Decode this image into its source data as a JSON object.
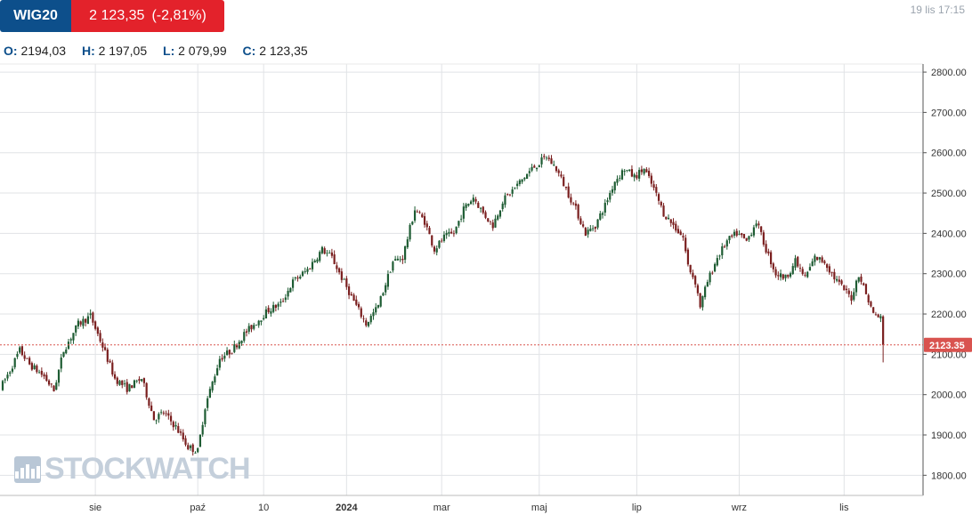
{
  "header": {
    "symbol": "WIG20",
    "price": "2 123,35",
    "change": "(-2,81%)",
    "timestamp": "19 lis 17:15"
  },
  "ohlc": [
    {
      "label": "O:",
      "value": "2194,03"
    },
    {
      "label": "H:",
      "value": "2 197,05"
    },
    {
      "label": "L:",
      "value": "2 079,99"
    },
    {
      "label": "C:",
      "value": "2 123,35"
    }
  ],
  "watermark": "STOCKWATCH",
  "colors": {
    "brand": "#0d4f8b",
    "down": "#e3222b",
    "candle_up": "#1e5c33",
    "candle_down": "#7a1f1f",
    "grid": "#e1e3e6",
    "price_line": "#d9534f"
  },
  "chart_data": {
    "type": "candlestick",
    "ylim": [
      1750,
      2820
    ],
    "y_ticks": [
      1800,
      1900,
      2000,
      2100,
      2200,
      2300,
      2400,
      2500,
      2600,
      2700,
      2800
    ],
    "y_tick_labels": [
      "1800.00",
      "1900.00",
      "2000.00",
      "2100.00",
      "2200.00",
      "2300.00",
      "2400.00",
      "2500.00",
      "2600.00",
      "2700.00",
      "2800.00"
    ],
    "x_ticks": [
      "sie",
      "paź",
      "10",
      "2024",
      "mar",
      "maj",
      "lip",
      "wrz",
      "lis"
    ],
    "x_tick_bold": [
      false,
      false,
      false,
      true,
      false,
      false,
      false,
      false,
      false
    ],
    "x_tick_index": [
      38,
      80,
      107,
      141,
      180,
      220,
      260,
      302,
      345
    ],
    "last_price_label": "2123.35",
    "last_price": 2123.35,
    "grid": true,
    "trend_anchors": [
      [
        0,
        2015
      ],
      [
        4,
        2060
      ],
      [
        8,
        2110
      ],
      [
        12,
        2075
      ],
      [
        18,
        2045
      ],
      [
        22,
        2010
      ],
      [
        26,
        2110
      ],
      [
        32,
        2175
      ],
      [
        37,
        2195
      ],
      [
        42,
        2120
      ],
      [
        47,
        2040
      ],
      [
        52,
        2015
      ],
      [
        58,
        2040
      ],
      [
        63,
        1940
      ],
      [
        67,
        1955
      ],
      [
        72,
        1920
      ],
      [
        77,
        1870
      ],
      [
        81,
        1860
      ],
      [
        84,
        1970
      ],
      [
        86,
        2010
      ],
      [
        90,
        2090
      ],
      [
        95,
        2110
      ],
      [
        100,
        2150
      ],
      [
        105,
        2180
      ],
      [
        110,
        2210
      ],
      [
        115,
        2225
      ],
      [
        120,
        2280
      ],
      [
        126,
        2310
      ],
      [
        132,
        2360
      ],
      [
        136,
        2340
      ],
      [
        140,
        2290
      ],
      [
        146,
        2220
      ],
      [
        150,
        2175
      ],
      [
        155,
        2220
      ],
      [
        161,
        2330
      ],
      [
        165,
        2340
      ],
      [
        170,
        2460
      ],
      [
        174,
        2430
      ],
      [
        178,
        2360
      ],
      [
        182,
        2390
      ],
      [
        186,
        2400
      ],
      [
        190,
        2460
      ],
      [
        194,
        2490
      ],
      [
        198,
        2450
      ],
      [
        202,
        2420
      ],
      [
        206,
        2480
      ],
      [
        212,
        2520
      ],
      [
        218,
        2560
      ],
      [
        224,
        2590
      ],
      [
        228,
        2560
      ],
      [
        232,
        2510
      ],
      [
        236,
        2460
      ],
      [
        240,
        2400
      ],
      [
        244,
        2420
      ],
      [
        248,
        2470
      ],
      [
        252,
        2530
      ],
      [
        256,
        2560
      ],
      [
        260,
        2540
      ],
      [
        264,
        2560
      ],
      [
        268,
        2510
      ],
      [
        272,
        2450
      ],
      [
        276,
        2420
      ],
      [
        280,
        2390
      ],
      [
        282,
        2320
      ],
      [
        285,
        2280
      ],
      [
        287,
        2220
      ],
      [
        290,
        2280
      ],
      [
        294,
        2340
      ],
      [
        298,
        2380
      ],
      [
        302,
        2400
      ],
      [
        306,
        2380
      ],
      [
        310,
        2430
      ],
      [
        314,
        2360
      ],
      [
        318,
        2300
      ],
      [
        322,
        2290
      ],
      [
        326,
        2330
      ],
      [
        330,
        2290
      ],
      [
        334,
        2340
      ],
      [
        338,
        2330
      ],
      [
        342,
        2290
      ],
      [
        346,
        2260
      ],
      [
        349,
        2240
      ],
      [
        352,
        2300
      ],
      [
        355,
        2250
      ],
      [
        358,
        2200
      ],
      [
        361,
        2190
      ]
    ],
    "last_candle": {
      "open": 2194.03,
      "high": 2197.05,
      "low": 2079.99,
      "close": 2123.35
    },
    "candle_count": 362
  }
}
